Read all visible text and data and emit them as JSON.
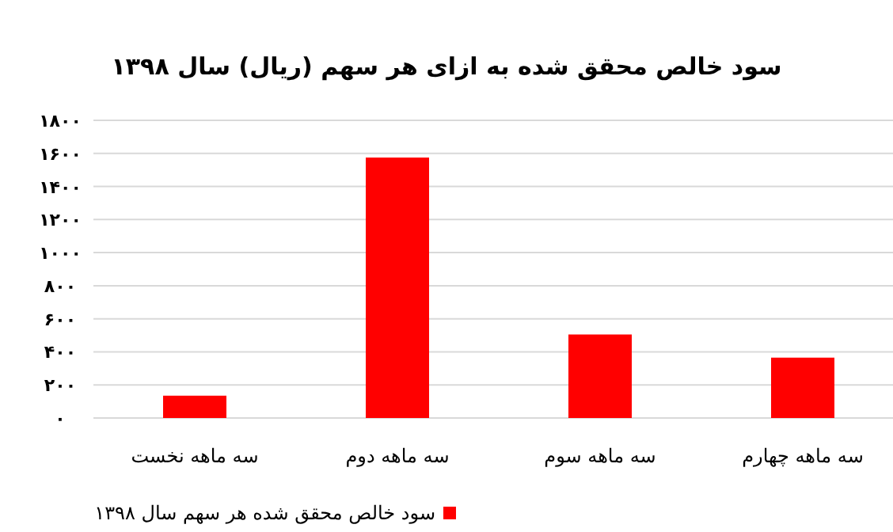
{
  "chart_data": {
    "type": "bar",
    "title": "سود خالص محقق شده به ازای هر سهم (ریال) سال ۱۳۹۸",
    "categories": [
      "سه ماهه نخست",
      "سه ماهه دوم",
      "سه ماهه سوم",
      "سه ماهه چهارم"
    ],
    "series": [
      {
        "name": "سود خالص محقق شده هر سهم سال ۱۳۹۸",
        "color": "#ff0000",
        "values": [
          135,
          1575,
          505,
          365
        ]
      }
    ],
    "ylim": [
      0,
      1800
    ],
    "yticks": [
      {
        "value": 0,
        "label": "۰"
      },
      {
        "value": 200,
        "label": "۲۰۰"
      },
      {
        "value": 400,
        "label": "۴۰۰"
      },
      {
        "value": 600,
        "label": "۶۰۰"
      },
      {
        "value": 800,
        "label": "۸۰۰"
      },
      {
        "value": 1000,
        "label": "۱۰۰۰"
      },
      {
        "value": 1200,
        "label": "۱۲۰۰"
      },
      {
        "value": 1400,
        "label": "۱۴۰۰"
      },
      {
        "value": 1600,
        "label": "۱۶۰۰"
      },
      {
        "value": 1800,
        "label": "۱۸۰۰"
      }
    ],
    "grid": "y",
    "legend": "bottom"
  }
}
